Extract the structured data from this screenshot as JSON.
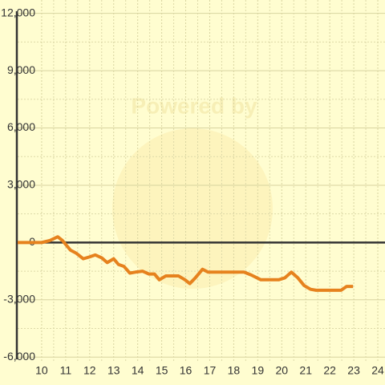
{
  "chart_data": {
    "type": "line",
    "watermark": "Powered by",
    "x": [
      9,
      10,
      10.33,
      10.67,
      10.87,
      11.2,
      11.43,
      11.73,
      12,
      12.23,
      12.5,
      12.73,
      13,
      13.2,
      13.43,
      13.67,
      13.9,
      14.2,
      14.47,
      14.7,
      14.9,
      15.17,
      15.7,
      15.97,
      16.17,
      16.4,
      16.7,
      16.93,
      18.43,
      18.73,
      19.13,
      19.87,
      20.13,
      20.4,
      20.67,
      20.93,
      21.2,
      21.43,
      22.47,
      22.7,
      22.97
    ],
    "series": [
      {
        "color": "#e6821e",
        "values": [
          0,
          0,
          100,
          300,
          100,
          -400,
          -550,
          -850,
          -750,
          -650,
          -800,
          -1050,
          -850,
          -1150,
          -1250,
          -1600,
          -1550,
          -1500,
          -1650,
          -1650,
          -1950,
          -1750,
          -1750,
          -1950,
          -2150,
          -1850,
          -1400,
          -1550,
          -1550,
          -1700,
          -1950,
          -1950,
          -1850,
          -1550,
          -1850,
          -2250,
          -2450,
          -2500,
          -2500,
          -2300,
          -2300
        ]
      }
    ],
    "xlim": [
      9,
      24.3
    ],
    "xticks": [
      10,
      11,
      12,
      13,
      14,
      15,
      16,
      17,
      18,
      19,
      20,
      21,
      22,
      23,
      24
    ],
    "ylim": [
      -6200,
      12700
    ],
    "yticks": [
      {
        "value": 12000,
        "label": "12,000"
      },
      {
        "value": 9000,
        "label": "9,000"
      },
      {
        "value": 6000,
        "label": "6,000"
      },
      {
        "value": 3000,
        "label": "3,000"
      },
      0,
      {
        "value": -3000,
        "label": "-3,000"
      },
      {
        "value": -6000,
        "label": "-6,000"
      }
    ],
    "grid": true
  }
}
